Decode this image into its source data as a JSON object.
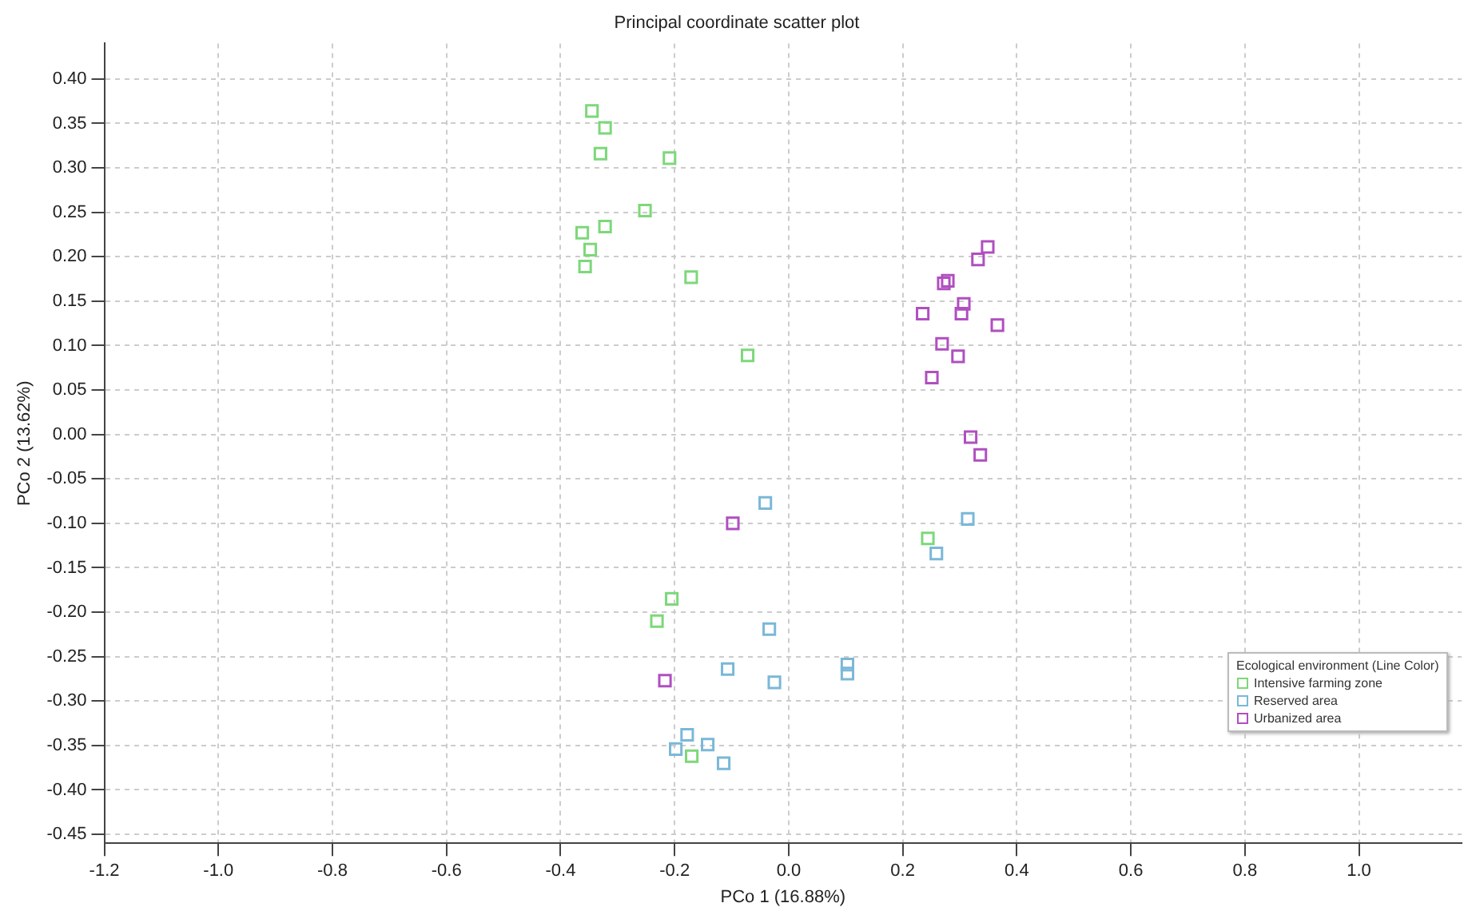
{
  "chart_data": {
    "type": "scatter",
    "title": "Principal coordinate scatter plot",
    "xlabel": "PCo 1 (16.88%)",
    "ylabel": "PCo 2 (13.62%)",
    "legend_title": "Ecological environment (Line Color)",
    "legend": "bottom right",
    "grid": true,
    "marker": "square",
    "xlim": [
      -1.2,
      1.18
    ],
    "ylim": [
      -0.46,
      0.44
    ],
    "xticks": [
      {
        "value": -1.2,
        "label": "-1.2"
      },
      {
        "value": -1.0,
        "label": "-1.0"
      },
      {
        "value": -0.8,
        "label": "-0.8"
      },
      {
        "value": -0.6,
        "label": "-0.6"
      },
      {
        "value": -0.4,
        "label": "-0.4"
      },
      {
        "value": -0.2,
        "label": "-0.2"
      },
      {
        "value": 0,
        "label": "0.0"
      },
      {
        "value": 0.2,
        "label": "0.2"
      },
      {
        "value": 0.4,
        "label": "0.4"
      },
      {
        "value": 0.6,
        "label": "0.6"
      },
      {
        "value": 0.8,
        "label": "0.8"
      },
      {
        "value": 1.0,
        "label": "1.0"
      }
    ],
    "yticks": [
      {
        "value": -0.45,
        "label": "-0.45"
      },
      {
        "value": -0.4,
        "label": "-0.40"
      },
      {
        "value": -0.35,
        "label": "-0.35"
      },
      {
        "value": -0.3,
        "label": "-0.30"
      },
      {
        "value": -0.25,
        "label": "-0.25"
      },
      {
        "value": -0.2,
        "label": "-0.20"
      },
      {
        "value": -0.15,
        "label": "-0.15"
      },
      {
        "value": -0.1,
        "label": "-0.10"
      },
      {
        "value": -0.05,
        "label": "-0.05"
      },
      {
        "value": 0,
        "label": "0.00"
      },
      {
        "value": 0.05,
        "label": "0.05"
      },
      {
        "value": 0.1,
        "label": "0.10"
      },
      {
        "value": 0.15,
        "label": "0.15"
      },
      {
        "value": 0.2,
        "label": "0.20"
      },
      {
        "value": 0.25,
        "label": "0.25"
      },
      {
        "value": 0.3,
        "label": "0.30"
      },
      {
        "value": 0.35,
        "label": "0.35"
      },
      {
        "value": 0.4,
        "label": "0.40"
      }
    ],
    "series": [
      {
        "name": "Intensive farming zone",
        "color": "#7dd87a",
        "x": [
          -0.345,
          -0.322,
          -0.33,
          -0.209,
          -0.252,
          -0.322,
          -0.362,
          -0.348,
          -0.357,
          -0.171,
          -0.072,
          0.244,
          -0.205,
          -0.231,
          -0.17
        ],
        "values": [
          0.364,
          0.345,
          0.316,
          0.311,
          0.252,
          0.234,
          0.227,
          0.208,
          0.189,
          0.177,
          0.089,
          -0.117,
          -0.185,
          -0.21,
          -0.362
        ]
      },
      {
        "name": "Reserved area",
        "color": "#7ab8d8",
        "x": [
          -0.041,
          0.314,
          0.259,
          -0.034,
          -0.107,
          -0.025,
          0.103,
          0.103,
          -0.178,
          -0.198,
          -0.142,
          -0.114
        ],
        "values": [
          -0.077,
          -0.095,
          -0.134,
          -0.219,
          -0.264,
          -0.279,
          -0.259,
          -0.269,
          -0.338,
          -0.354,
          -0.349,
          -0.37
        ]
      },
      {
        "name": "Urbanized area",
        "color": "#b04fc0",
        "x": [
          0.349,
          0.332,
          0.279,
          0.272,
          0.307,
          0.303,
          0.235,
          0.366,
          0.269,
          0.297,
          0.251,
          0.319,
          0.336,
          -0.098,
          -0.217
        ],
        "values": [
          0.211,
          0.197,
          0.173,
          0.17,
          0.147,
          0.136,
          0.136,
          0.123,
          0.102,
          0.088,
          0.064,
          -0.003,
          -0.023,
          -0.1,
          -0.277
        ]
      }
    ]
  }
}
